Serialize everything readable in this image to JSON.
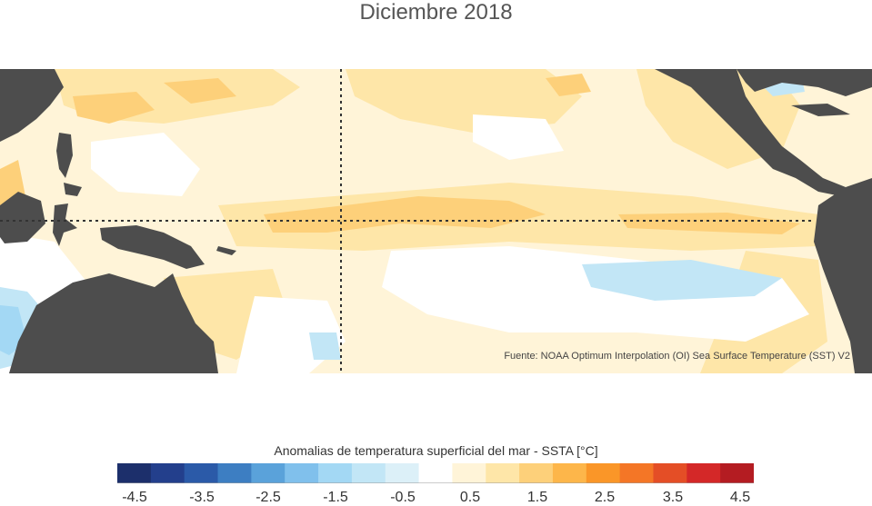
{
  "title": "Diciembre 2018",
  "source": "Fuente: NOAA Optimum Interpolation (OI) Sea Surface Temperature (SST) V2",
  "colorbar": {
    "title": "Anomalias de temperatura superficial del mar - SSTA  [°C]",
    "colors": [
      "#1c2f6b",
      "#233f8c",
      "#2b5aa8",
      "#3d7ec2",
      "#5aa2da",
      "#80c0ec",
      "#a3d8f4",
      "#c2e6f6",
      "#dcf0f8",
      "#ffffff",
      "#fff4d8",
      "#fee6a8",
      "#fdd07a",
      "#fdb64a",
      "#fa9628",
      "#f47626",
      "#e44e26",
      "#d42828",
      "#b41c22"
    ],
    "ticks": [
      "-4.5",
      "-3.5",
      "-2.5",
      "-1.5",
      "-0.5",
      "0.5",
      "1.5",
      "2.5",
      "3.5",
      "4.5"
    ]
  },
  "colors": {
    "land": "#4d4d4d",
    "ocean_base": "#fff4d8",
    "warm_light": "#fee6a8",
    "warm_mid": "#fdd07a",
    "neutral": "#ffffff",
    "cool": "#c2e6f6",
    "cool_mid": "#a3d8f4"
  }
}
